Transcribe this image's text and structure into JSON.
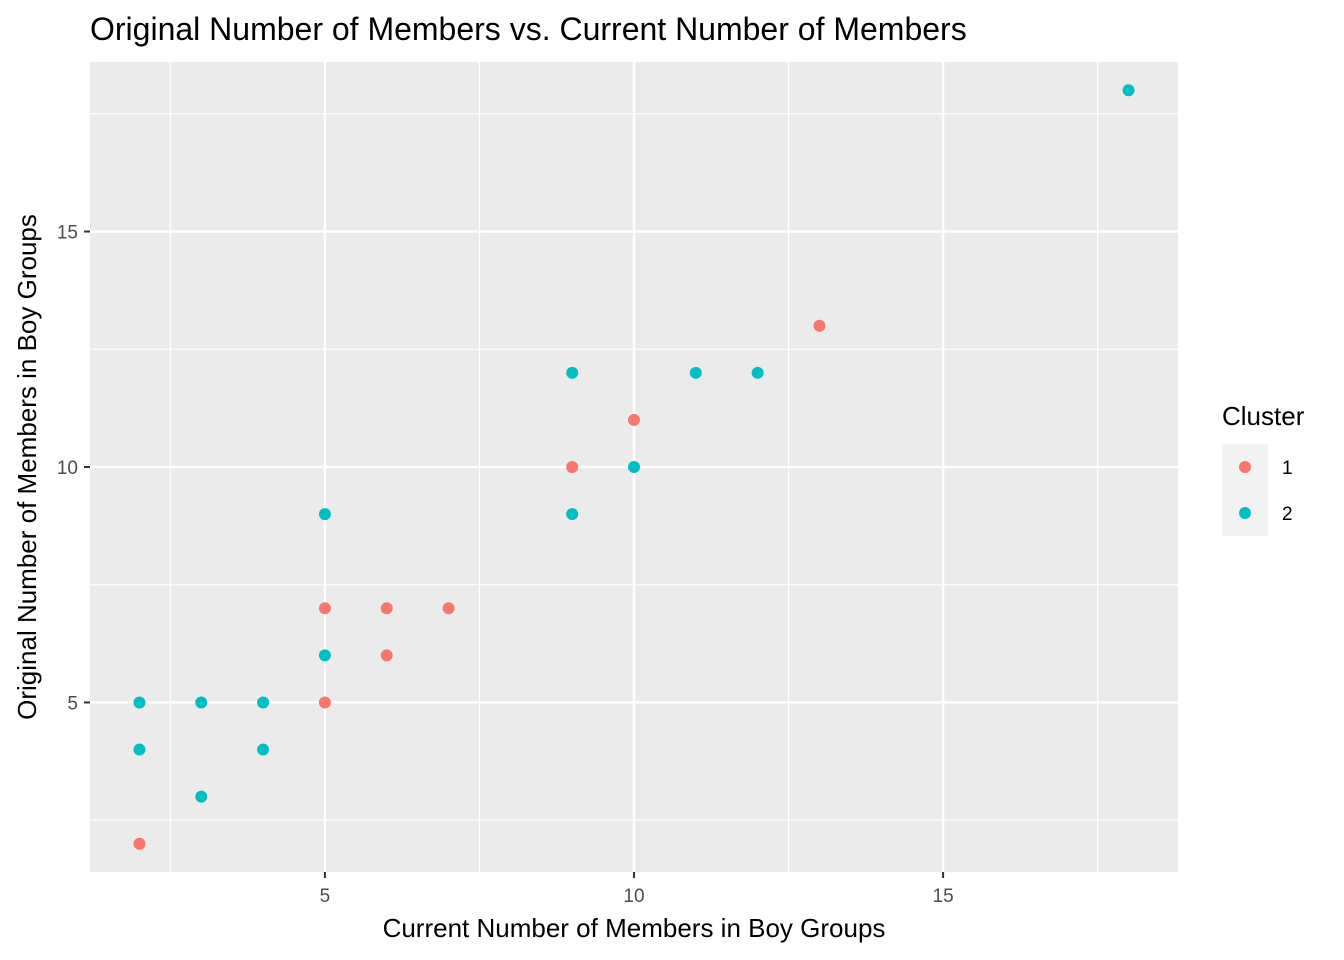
{
  "chart_data": {
    "type": "scatter",
    "title": "Original Number of Members vs. Current Number of Members",
    "xlabel": "Current Number of Members in Boy Groups",
    "ylabel": "Original Number of Members in Boy Groups",
    "xlim": [
      1.2,
      18.8
    ],
    "ylim": [
      1.4,
      18.6
    ],
    "x_ticks": [
      5,
      10,
      15
    ],
    "y_ticks": [
      5,
      10,
      15
    ],
    "x_tick_labels": [
      "5",
      "10",
      "15"
    ],
    "y_tick_labels": [
      "5",
      "10",
      "15"
    ],
    "x_minor": [
      2.5,
      7.5,
      12.5,
      17.5
    ],
    "y_minor": [
      2.5,
      7.5,
      12.5,
      17.5
    ],
    "grid": true,
    "panel_background": "#ebebeb",
    "legend": {
      "title": "Cluster",
      "placement": "right",
      "entries": [
        {
          "label": "1",
          "color": "#f8766d"
        },
        {
          "label": "2",
          "color": "#00bfc4"
        }
      ]
    },
    "series": [
      {
        "name": "1",
        "color": "#f8766d",
        "points": [
          [
            2,
            2
          ],
          [
            5,
            5
          ],
          [
            5,
            7
          ],
          [
            6,
            6
          ],
          [
            6,
            7
          ],
          [
            7,
            7
          ],
          [
            9,
            10
          ],
          [
            10,
            11
          ],
          [
            13,
            13
          ]
        ]
      },
      {
        "name": "2",
        "color": "#00bfc4",
        "points": [
          [
            2,
            4
          ],
          [
            2,
            5
          ],
          [
            3,
            3
          ],
          [
            3,
            5
          ],
          [
            4,
            4
          ],
          [
            4,
            5
          ],
          [
            5,
            6
          ],
          [
            5,
            9
          ],
          [
            9,
            9
          ],
          [
            9,
            12
          ],
          [
            10,
            10
          ],
          [
            11,
            12
          ],
          [
            12,
            12
          ],
          [
            18,
            18
          ]
        ]
      }
    ]
  }
}
